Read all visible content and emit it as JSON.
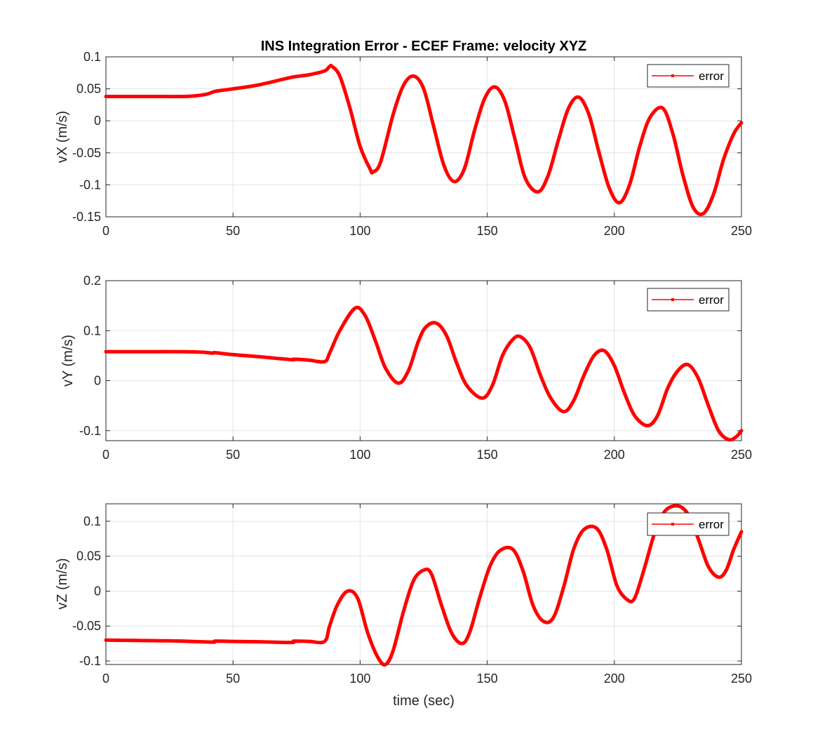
{
  "figure": {
    "background": "#ffffff"
  },
  "chart_data": [
    {
      "type": "line",
      "title": "INS Integration Error - ECEF Frame: velocity XYZ",
      "xlabel": "",
      "ylabel": "vX (m/s)",
      "xlim": [
        0,
        250
      ],
      "ylim": [
        -0.15,
        0.1
      ],
      "xticks": [
        0,
        50,
        100,
        150,
        200,
        250
      ],
      "xtick_labels": [
        "0",
        "50",
        "100",
        "150",
        "200",
        "250"
      ],
      "yticks": [
        -0.15,
        -0.1,
        -0.05,
        0,
        0.05,
        0.1
      ],
      "ytick_labels": [
        "-0.15",
        "-0.1",
        "-0.05",
        "0",
        "0.05",
        "0.1"
      ],
      "grid": true,
      "legend": {
        "placement": "top-right",
        "entries": [
          "error"
        ]
      },
      "series": [
        {
          "name": "error",
          "color": "#ff0000",
          "x": [
            0,
            10,
            20,
            30,
            35,
            40,
            43,
            50,
            60,
            73,
            80,
            86,
            88,
            89,
            92,
            96,
            100,
            104,
            105,
            108,
            113,
            117,
            121,
            125,
            129,
            133,
            137,
            141,
            145,
            149,
            153,
            157,
            161,
            165,
            170,
            174,
            178,
            182,
            186,
            190,
            194,
            198,
            202,
            206,
            210,
            214,
            219,
            223,
            227,
            231,
            235,
            239,
            243,
            247,
            250
          ],
          "y": [
            0.038,
            0.038,
            0.038,
            0.038,
            0.039,
            0.042,
            0.046,
            0.05,
            0.056,
            0.068,
            0.072,
            0.078,
            0.085,
            0.085,
            0.07,
            0.02,
            -0.04,
            -0.076,
            -0.08,
            -0.065,
            0.01,
            0.055,
            0.07,
            0.05,
            -0.01,
            -0.07,
            -0.095,
            -0.075,
            -0.015,
            0.035,
            0.053,
            0.03,
            -0.03,
            -0.09,
            -0.111,
            -0.085,
            -0.03,
            0.02,
            0.037,
            0.01,
            -0.05,
            -0.105,
            -0.128,
            -0.1,
            -0.04,
            0.005,
            0.02,
            -0.02,
            -0.085,
            -0.135,
            -0.145,
            -0.115,
            -0.06,
            -0.02,
            -0.003
          ]
        }
      ]
    },
    {
      "type": "line",
      "title": "",
      "xlabel": "",
      "ylabel": "vY (m/s)",
      "xlim": [
        0,
        250
      ],
      "ylim": [
        -0.12,
        0.2
      ],
      "xticks": [
        0,
        50,
        100,
        150,
        200,
        250
      ],
      "xtick_labels": [
        "0",
        "50",
        "100",
        "150",
        "200",
        "250"
      ],
      "yticks": [
        -0.1,
        0,
        0.1,
        0.2
      ],
      "ytick_labels": [
        "-0.1",
        "0",
        "0.1",
        "0.2"
      ],
      "grid": true,
      "legend": {
        "placement": "top-right",
        "entries": [
          "error"
        ]
      },
      "series": [
        {
          "name": "error",
          "color": "#ff0000",
          "x": [
            0,
            10,
            20,
            30,
            38,
            42,
            43,
            50,
            60,
            73,
            74,
            80,
            86,
            88,
            92,
            98,
            102,
            106,
            110,
            115,
            119,
            123,
            126,
            130,
            134,
            138,
            142,
            148,
            152,
            156,
            160,
            163,
            167,
            171,
            175,
            180,
            184,
            188,
            192,
            196,
            200,
            204,
            208,
            213,
            217,
            221,
            225,
            229,
            233,
            237,
            241,
            245,
            248,
            250
          ],
          "y": [
            0.058,
            0.058,
            0.058,
            0.058,
            0.057,
            0.055,
            0.056,
            0.052,
            0.048,
            0.042,
            0.043,
            0.041,
            0.038,
            0.055,
            0.1,
            0.145,
            0.13,
            0.08,
            0.025,
            -0.005,
            0.02,
            0.08,
            0.108,
            0.115,
            0.09,
            0.035,
            -0.01,
            -0.035,
            -0.01,
            0.05,
            0.082,
            0.088,
            0.065,
            0.01,
            -0.035,
            -0.062,
            -0.04,
            0.01,
            0.05,
            0.06,
            0.03,
            -0.025,
            -0.07,
            -0.09,
            -0.07,
            -0.015,
            0.02,
            0.032,
            0.005,
            -0.05,
            -0.1,
            -0.118,
            -0.112,
            -0.1
          ]
        }
      ]
    },
    {
      "type": "line",
      "title": "",
      "xlabel": "time (sec)",
      "ylabel": "vZ (m/s)",
      "xlim": [
        0,
        250
      ],
      "ylim": [
        -0.105,
        0.125
      ],
      "xticks": [
        0,
        50,
        100,
        150,
        200,
        250
      ],
      "xtick_labels": [
        "0",
        "50",
        "100",
        "150",
        "200",
        "250"
      ],
      "yticks": [
        -0.1,
        -0.05,
        0,
        0.05,
        0.1
      ],
      "ytick_labels": [
        "-0.1",
        "-0.05",
        "0",
        "0.05",
        "0.1"
      ],
      "grid": true,
      "legend": {
        "placement": "top-right",
        "entries": [
          "error"
        ]
      },
      "series": [
        {
          "name": "error",
          "color": "#ff0000",
          "x": [
            0,
            10,
            20,
            30,
            42,
            43,
            50,
            60,
            73,
            74,
            80,
            86,
            88,
            91,
            95,
            99,
            103,
            107,
            110,
            113,
            117,
            121,
            125,
            128,
            132,
            136,
            140,
            143,
            147,
            151,
            155,
            160,
            164,
            168,
            172,
            176,
            180,
            184,
            188,
            193,
            197,
            201,
            205,
            208,
            212,
            216,
            220,
            225,
            229,
            233,
            237,
            241,
            244,
            247,
            250
          ],
          "y": [
            -0.07,
            -0.0705,
            -0.071,
            -0.0715,
            -0.073,
            -0.0715,
            -0.072,
            -0.0725,
            -0.0735,
            -0.0715,
            -0.072,
            -0.072,
            -0.05,
            -0.02,
            0.0,
            -0.01,
            -0.06,
            -0.095,
            -0.105,
            -0.085,
            -0.03,
            0.015,
            0.03,
            0.025,
            -0.02,
            -0.06,
            -0.075,
            -0.06,
            -0.01,
            0.035,
            0.058,
            0.06,
            0.03,
            -0.02,
            -0.043,
            -0.038,
            0.005,
            0.06,
            0.088,
            0.09,
            0.06,
            0.008,
            -0.012,
            -0.01,
            0.035,
            0.085,
            0.115,
            0.122,
            0.11,
            0.075,
            0.035,
            0.02,
            0.03,
            0.06,
            0.085
          ]
        }
      ]
    }
  ]
}
